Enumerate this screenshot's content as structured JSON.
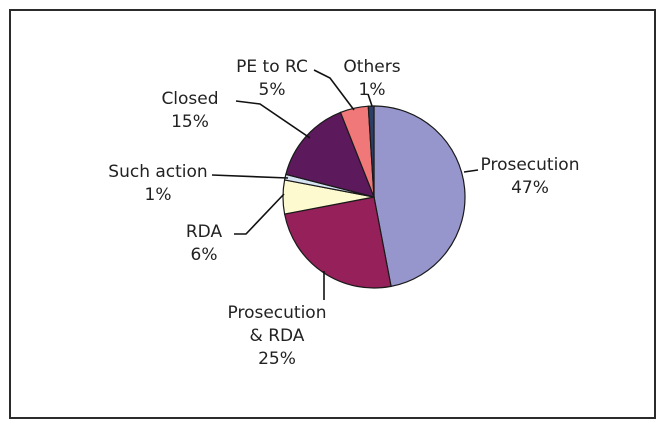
{
  "chart_data": {
    "type": "pie",
    "title": "",
    "slices": [
      {
        "name": "Prosecution",
        "label": "Prosecution",
        "pct_label": "47%",
        "value": 47,
        "color": "#9696cc"
      },
      {
        "name": "Prosecution & RDA",
        "label": "Prosecution\n& RDA",
        "pct_label": "25%",
        "value": 25,
        "color": "#96205a"
      },
      {
        "name": "RDA",
        "label": "RDA",
        "pct_label": "6%",
        "value": 6,
        "color": "#fdfad0"
      },
      {
        "name": "Such action",
        "label": "Such action",
        "pct_label": "1%",
        "value": 1,
        "color": "#d6e3f2"
      },
      {
        "name": "Closed",
        "label": "Closed",
        "pct_label": "15%",
        "value": 15,
        "color": "#5c1a5c"
      },
      {
        "name": "PE to RC",
        "label": "PE to RC",
        "pct_label": "5%",
        "value": 5,
        "color": "#f07878"
      },
      {
        "name": "Others",
        "label": "Others",
        "pct_label": "1%",
        "value": 1,
        "color": "#2c3e63"
      }
    ]
  }
}
